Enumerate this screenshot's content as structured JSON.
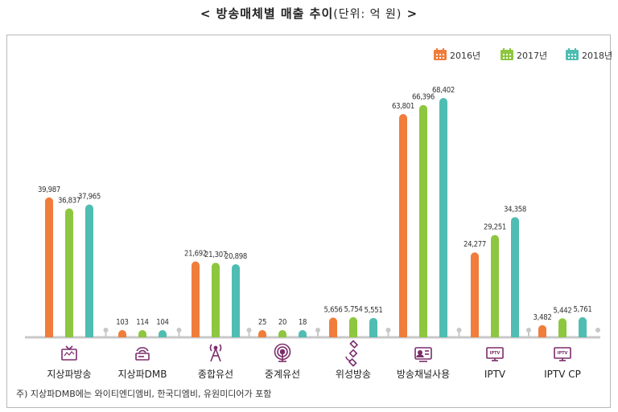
{
  "title": {
    "main": "< 방송매체별 매출 추이",
    "unit": "(단위: 억 원)",
    "close": " >"
  },
  "footnote": "주) 지상파DMB에는 와이티엔디엠비, 한국디엠비, 유원미디어가 포함",
  "colors": {
    "2016년": "#f07d3b",
    "2017년": "#8dc63f",
    "2018년": "#4fbdb2",
    "icon": "#7b2d6b"
  },
  "chart_data": {
    "type": "bar",
    "categories": [
      "지상파방송",
      "지상파DMB",
      "종합유선",
      "중계유선",
      "위성방송",
      "방송채널사용",
      "IPTV",
      "IPTV CP"
    ],
    "category_icons": [
      "tv-icon",
      "radio-icon",
      "antenna-tower-icon",
      "signal-icon",
      "satellite-icon",
      "channel-tv-icon",
      "iptv-monitor-icon",
      "iptv-monitor-icon"
    ],
    "series": [
      {
        "name": "2016년",
        "values": [
          39987,
          103,
          21692,
          25,
          5656,
          63801,
          24277,
          3482
        ],
        "labels": [
          "39,987",
          "103",
          "21,692",
          "25",
          "5,656",
          "63,801",
          "24,277",
          "3,482"
        ]
      },
      {
        "name": "2017년",
        "values": [
          36837,
          114,
          21307,
          20,
          5754,
          66396,
          29251,
          5442
        ],
        "labels": [
          "36,837",
          "114",
          "21,307",
          "20",
          "5,754",
          "66,396",
          "29,251",
          "5,442"
        ]
      },
      {
        "name": "2018년",
        "values": [
          37965,
          104,
          20898,
          18,
          5551,
          68402,
          34358,
          5761
        ],
        "labels": [
          "37,965",
          "104",
          "20,898",
          "18",
          "5,551",
          "68,402",
          "34,358",
          "5,761"
        ]
      }
    ],
    "legend_position": "top-right",
    "grid": false,
    "ylim": [
      0,
      70000
    ]
  }
}
